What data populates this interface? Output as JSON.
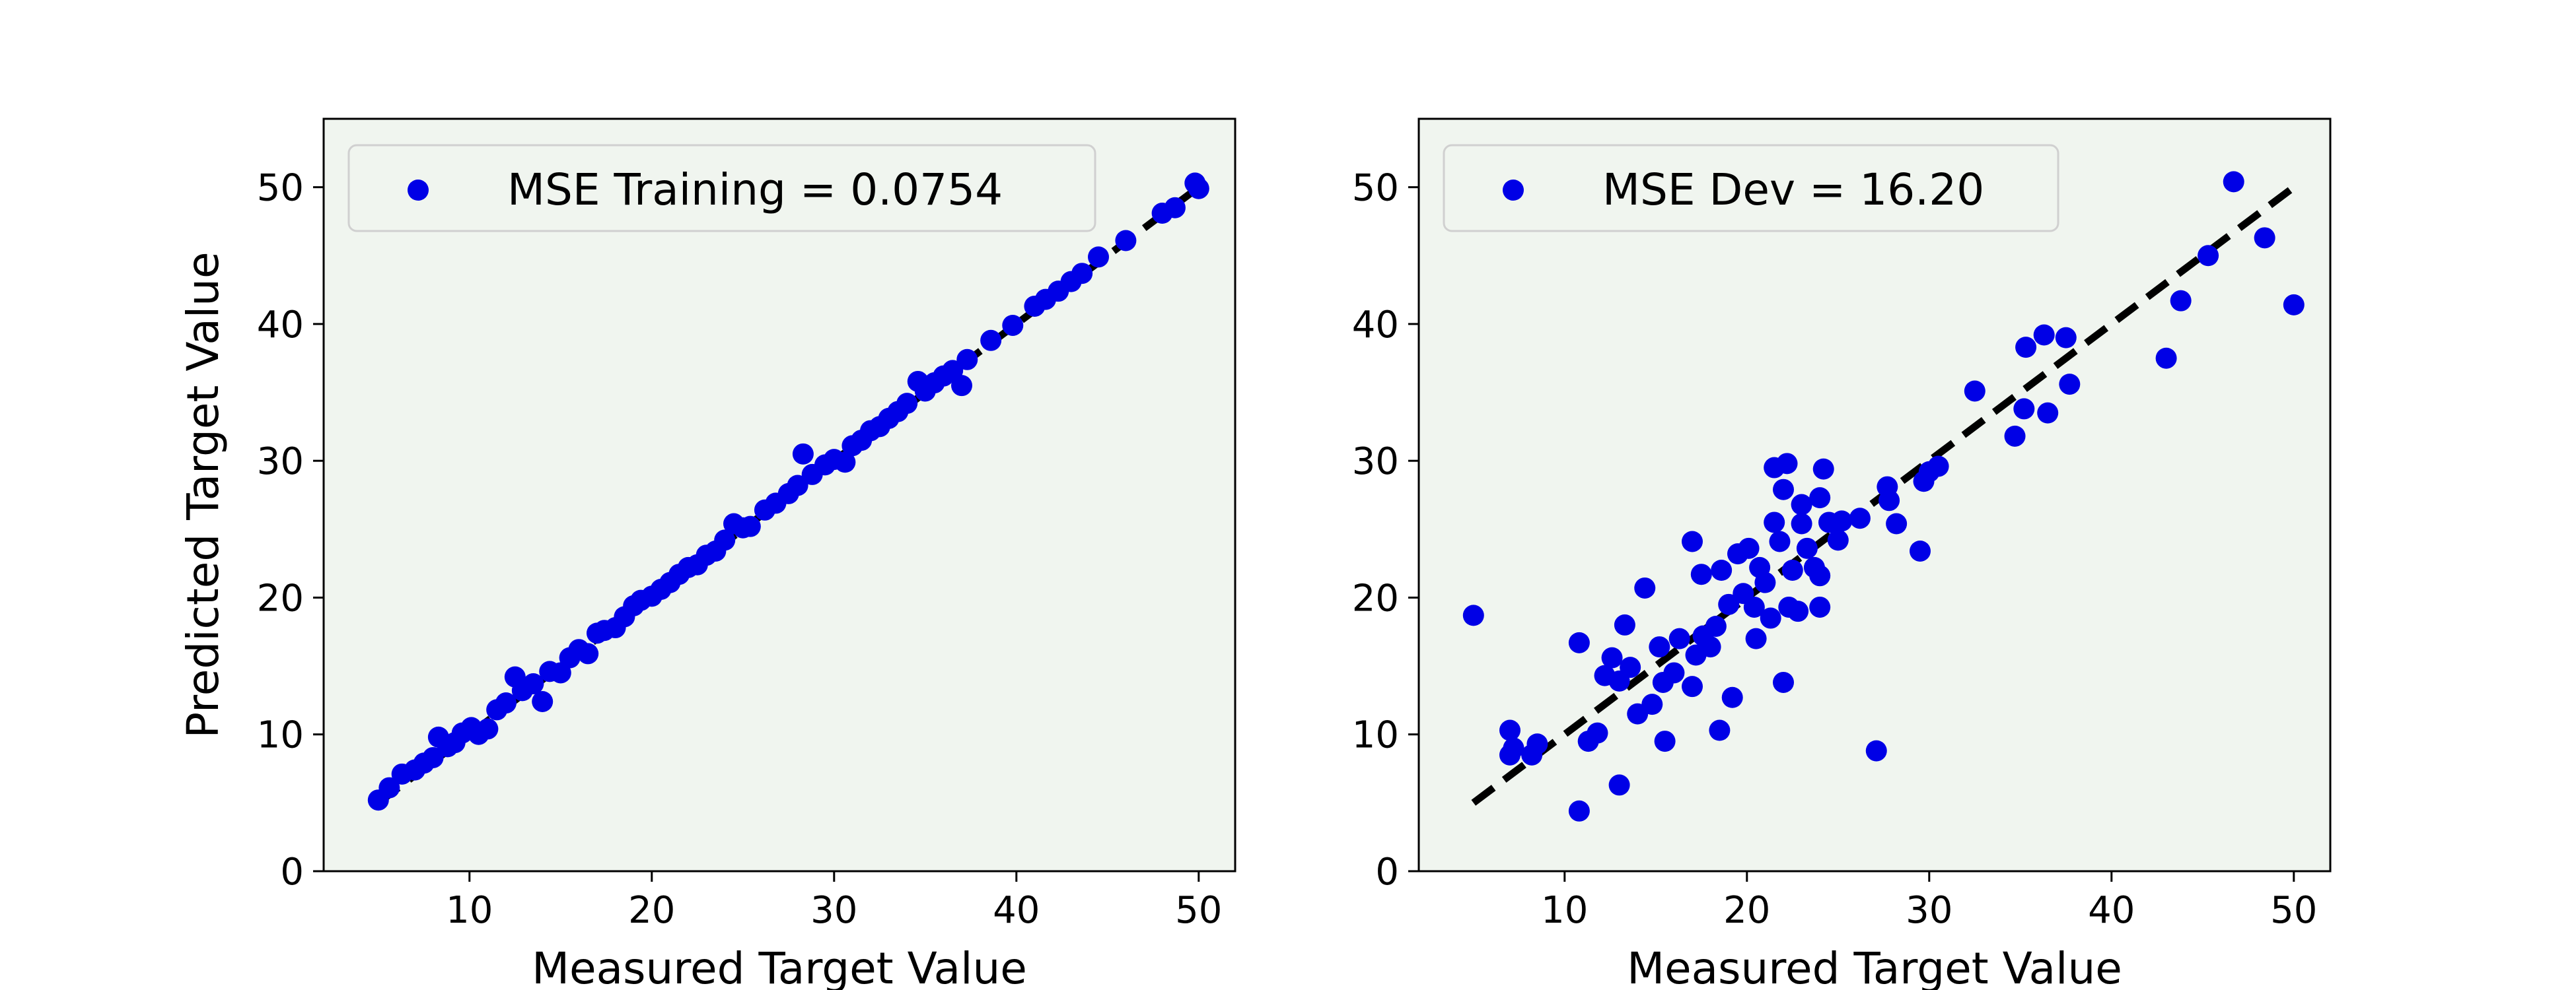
{
  "colors": {
    "marker": "#0000e6",
    "plot_background": "#f0f5ef",
    "identity_line": "#000000",
    "frame": "#000000"
  },
  "chart_data": [
    {
      "type": "scatter",
      "xlabel": "Measured Target Value",
      "ylabel": "Predicted Target Value",
      "xlim": [
        2,
        52
      ],
      "ylim": [
        0,
        55
      ],
      "xticks": [
        10,
        20,
        30,
        40,
        50
      ],
      "yticks": [
        0,
        10,
        20,
        30,
        40,
        50
      ],
      "grid": false,
      "legend_position": "top-left",
      "reference_line": [
        [
          5,
          5
        ],
        [
          50,
          50
        ]
      ],
      "series": [
        {
          "name": "MSE Training = 0.0754",
          "points": [
            [
              5,
              5.2
            ],
            [
              5.6,
              6.1
            ],
            [
              6.3,
              7.1
            ],
            [
              7,
              7.4
            ],
            [
              7.5,
              7.9
            ],
            [
              8,
              8.3
            ],
            [
              8.3,
              9.8
            ],
            [
              8.8,
              9.1
            ],
            [
              9.2,
              9.4
            ],
            [
              9.6,
              10.1
            ],
            [
              10.1,
              10.5
            ],
            [
              10.5,
              10
            ],
            [
              11,
              10.4
            ],
            [
              11.5,
              11.8
            ],
            [
              12,
              12.3
            ],
            [
              12.5,
              14.2
            ],
            [
              12.9,
              13.2
            ],
            [
              13.5,
              13.7
            ],
            [
              14,
              12.4
            ],
            [
              14.4,
              14.6
            ],
            [
              15,
              14.5
            ],
            [
              15.5,
              15.6
            ],
            [
              16,
              16.2
            ],
            [
              16.5,
              15.9
            ],
            [
              17,
              17.4
            ],
            [
              17.4,
              17.6
            ],
            [
              18,
              17.8
            ],
            [
              18.5,
              18.6
            ],
            [
              19,
              19.4
            ],
            [
              19.4,
              19.8
            ],
            [
              20,
              20.1
            ],
            [
              20.5,
              20.6
            ],
            [
              21,
              21.1
            ],
            [
              21.5,
              21.7
            ],
            [
              22,
              22.2
            ],
            [
              22.5,
              22.4
            ],
            [
              23,
              23.1
            ],
            [
              23.5,
              23.4
            ],
            [
              24,
              24.2
            ],
            [
              24.5,
              25.4
            ],
            [
              25,
              25.1
            ],
            [
              25.4,
              25.2
            ],
            [
              26.2,
              26.4
            ],
            [
              26.8,
              26.9
            ],
            [
              27.5,
              27.6
            ],
            [
              28,
              28.2
            ],
            [
              28.3,
              30.5
            ],
            [
              28.8,
              29
            ],
            [
              29.5,
              29.7
            ],
            [
              30,
              30.1
            ],
            [
              30.6,
              29.9
            ],
            [
              31,
              31.1
            ],
            [
              31.5,
              31.5
            ],
            [
              32,
              32.2
            ],
            [
              32.5,
              32.5
            ],
            [
              33,
              33.1
            ],
            [
              33.5,
              33.6
            ],
            [
              34,
              34.2
            ],
            [
              34.6,
              35.8
            ],
            [
              35,
              35.1
            ],
            [
              35.5,
              35.7
            ],
            [
              36,
              36.2
            ],
            [
              36.5,
              36.6
            ],
            [
              37,
              35.5
            ],
            [
              37.3,
              37.4
            ],
            [
              38.6,
              38.8
            ],
            [
              39.8,
              39.9
            ],
            [
              41,
              41.3
            ],
            [
              41.6,
              41.8
            ],
            [
              42.3,
              42.4
            ],
            [
              43,
              43.1
            ],
            [
              43.6,
              43.7
            ],
            [
              44.5,
              44.9
            ],
            [
              46,
              46.1
            ],
            [
              48,
              48.1
            ],
            [
              48.7,
              48.5
            ],
            [
              49.8,
              50.3
            ],
            [
              50,
              49.9
            ]
          ]
        }
      ]
    },
    {
      "type": "scatter",
      "xlabel": "Measured Target Value",
      "ylabel": "",
      "xlim": [
        2,
        52
      ],
      "ylim": [
        0,
        55
      ],
      "xticks": [
        10,
        20,
        30,
        40,
        50
      ],
      "yticks": [
        0,
        10,
        20,
        30,
        40,
        50
      ],
      "grid": false,
      "legend_position": "top-left",
      "reference_line": [
        [
          5,
          5
        ],
        [
          50,
          50
        ]
      ],
      "series": [
        {
          "name": "MSE Dev = 16.20",
          "points": [
            [
              5,
              18.7
            ],
            [
              7,
              10.3
            ],
            [
              7.2,
              9
            ],
            [
              7,
              8.5
            ],
            [
              8.2,
              8.5
            ],
            [
              8.5,
              9.3
            ],
            [
              10.8,
              16.7
            ],
            [
              10.8,
              4.4
            ],
            [
              11.3,
              9.5
            ],
            [
              11.8,
              10.1
            ],
            [
              12.2,
              14.3
            ],
            [
              12.6,
              15.6
            ],
            [
              13,
              13.9
            ],
            [
              13,
              6.3
            ],
            [
              13.3,
              18
            ],
            [
              13.6,
              14.9
            ],
            [
              14,
              11.5
            ],
            [
              14.4,
              20.7
            ],
            [
              14.8,
              12.2
            ],
            [
              15.2,
              16.4
            ],
            [
              15.5,
              9.5
            ],
            [
              15.4,
              13.8
            ],
            [
              16,
              14.5
            ],
            [
              16.3,
              17
            ],
            [
              17,
              24.1
            ],
            [
              17,
              13.5
            ],
            [
              17.5,
              21.7
            ],
            [
              17.6,
              17.2
            ],
            [
              17.2,
              15.8
            ],
            [
              18,
              16.4
            ],
            [
              18.3,
              17.9
            ],
            [
              18.6,
              22
            ],
            [
              18.5,
              10.3
            ],
            [
              19,
              19.5
            ],
            [
              19.2,
              12.7
            ],
            [
              19.5,
              23.2
            ],
            [
              19.8,
              20.3
            ],
            [
              20.1,
              23.6
            ],
            [
              20.4,
              19.3
            ],
            [
              20.5,
              17
            ],
            [
              20.7,
              22.2
            ],
            [
              21,
              21.1
            ],
            [
              21.3,
              18.5
            ],
            [
              21.5,
              25.5
            ],
            [
              21.5,
              29.5
            ],
            [
              21.8,
              24.1
            ],
            [
              22,
              13.8
            ],
            [
              22,
              27.9
            ],
            [
              22.2,
              29.8
            ],
            [
              22.3,
              19.3
            ],
            [
              22.5,
              22
            ],
            [
              22.8,
              19
            ],
            [
              23,
              25.4
            ],
            [
              23,
              26.8
            ],
            [
              23.3,
              23.6
            ],
            [
              23.7,
              22.2
            ],
            [
              24,
              21.6
            ],
            [
              24,
              27.3
            ],
            [
              24,
              19.3
            ],
            [
              24.2,
              29.4
            ],
            [
              24.5,
              25.5
            ],
            [
              25,
              24.2
            ],
            [
              25.2,
              25.6
            ],
            [
              26.2,
              25.8
            ],
            [
              27.1,
              8.8
            ],
            [
              27.7,
              28.1
            ],
            [
              27.8,
              27.1
            ],
            [
              28.2,
              25.4
            ],
            [
              29.5,
              23.4
            ],
            [
              29.7,
              28.5
            ],
            [
              30,
              29.2
            ],
            [
              30.5,
              29.6
            ],
            [
              32.5,
              35.1
            ],
            [
              34.7,
              31.8
            ],
            [
              35.2,
              33.8
            ],
            [
              35.3,
              38.3
            ],
            [
              36.3,
              39.2
            ],
            [
              36.5,
              33.5
            ],
            [
              37.5,
              39
            ],
            [
              37.7,
              35.6
            ],
            [
              43,
              37.5
            ],
            [
              43.8,
              41.7
            ],
            [
              45.3,
              45
            ],
            [
              46.7,
              50.4
            ],
            [
              48.4,
              46.3
            ],
            [
              50,
              41.4
            ]
          ]
        }
      ]
    }
  ]
}
